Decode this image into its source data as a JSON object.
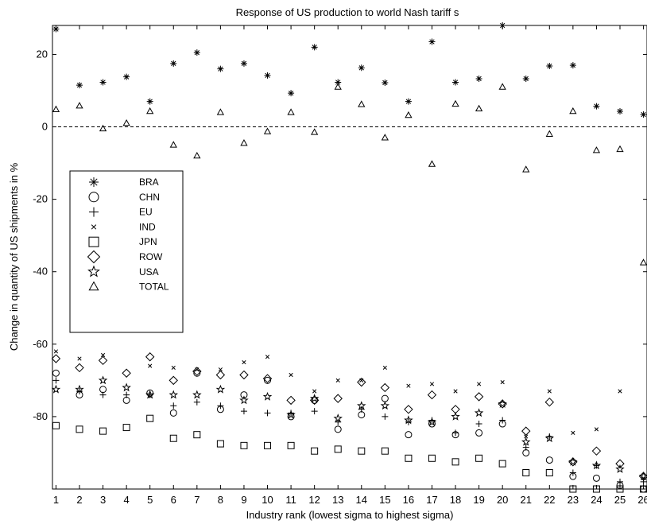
{
  "chart_data": {
    "type": "scatter",
    "title": "Response of US production to world Nash tariff s",
    "xlabel": "Industry rank (lowest sigma to highest sigma)",
    "ylabel": "Change in quantity of US shipments in %",
    "xlim": [
      0.85,
      26.15
    ],
    "ylim": [
      -100,
      28
    ],
    "xticks": [
      1,
      2,
      3,
      4,
      5,
      6,
      7,
      8,
      9,
      10,
      11,
      12,
      13,
      14,
      15,
      16,
      17,
      18,
      19,
      20,
      21,
      22,
      23,
      24,
      25,
      26
    ],
    "yticks": [
      20,
      0,
      -20,
      -40,
      -60,
      -80
    ],
    "reference_line": {
      "y": 0,
      "style": "dashed"
    },
    "legend_position": "left-middle",
    "grid": false,
    "series": [
      {
        "name": "BRA",
        "marker": "asterisk",
        "values": [
          27,
          11.5,
          12.3,
          13.8,
          7,
          17.5,
          20.5,
          16,
          17.5,
          14.2,
          9.3,
          22,
          12.3,
          16.3,
          12.2,
          7,
          23.5,
          12.3,
          13.3,
          28,
          13.3,
          16.8,
          17,
          5.7,
          4.3,
          3.4
        ]
      },
      {
        "name": "CHN",
        "marker": "circle",
        "values": [
          -68,
          -74,
          -72.5,
          -75.5,
          -73.5,
          -79,
          -68,
          -78,
          -74,
          -70,
          -80,
          -75.5,
          -83.5,
          -79.5,
          -75,
          -85,
          -82,
          -85,
          -84.5,
          -82,
          -90,
          -92,
          -96.5,
          -97,
          -99,
          -100
        ]
      },
      {
        "name": "EU",
        "marker": "plus",
        "values": [
          -70,
          -73,
          -74,
          -74,
          -74,
          -77,
          -76,
          -77,
          -78.5,
          -79,
          -79,
          -78.5,
          -81.5,
          -78,
          -80,
          -81.5,
          -81,
          -84.5,
          -82,
          -81,
          -88.5,
          -85.5,
          -95.5,
          -93.5,
          -98,
          -98
        ]
      },
      {
        "name": "IND",
        "marker": "cross",
        "values": [
          -62,
          -64,
          -63,
          -55,
          -66,
          -66.5,
          -67,
          -67,
          -65,
          -63.5,
          -68.5,
          -73,
          -70,
          -70,
          -66.5,
          -71.5,
          -71,
          -73,
          -71,
          -70.5,
          -85.5,
          -73,
          -84.5,
          -83.5,
          -73,
          -97
        ]
      },
      {
        "name": "JPN",
        "marker": "square",
        "values": [
          -82.5,
          -83.5,
          -84,
          -83,
          -80.5,
          -86,
          -85,
          -87.5,
          -88,
          -88,
          -88,
          -89.5,
          -89,
          -89.5,
          -89.5,
          -91.5,
          -91.5,
          -92.5,
          -91.5,
          -93,
          -95.5,
          -95.5,
          -100,
          -100,
          -100,
          -100
        ]
      },
      {
        "name": "ROW",
        "marker": "diamond",
        "values": [
          -64,
          -66.5,
          -64.5,
          -68,
          -63.5,
          -70,
          -67.5,
          -68.5,
          -68.5,
          -69.5,
          -75.5,
          -75.5,
          -75,
          -70.5,
          -72,
          -78,
          -74,
          -78,
          -74.5,
          -76.5,
          -84,
          -76,
          -92.5,
          -89.5,
          -93,
          -96.5
        ]
      },
      {
        "name": "USA",
        "marker": "star",
        "values": [
          -72.5,
          -72.5,
          -70,
          -72,
          -74,
          -74,
          -74,
          -72.5,
          -75.5,
          -74.5,
          -79.5,
          -75,
          -80.5,
          -77,
          -77,
          -81,
          -81.5,
          -80,
          -79,
          -76.5,
          -87,
          -86,
          -92.5,
          -93.5,
          -94.5,
          -96.5
        ]
      },
      {
        "name": "TOTAL",
        "marker": "triangle",
        "values": [
          4.8,
          5.8,
          -0.5,
          1,
          4.3,
          -5,
          -8,
          4,
          -4.5,
          -1.3,
          4,
          -1.5,
          11,
          6.2,
          -3,
          3.2,
          -10.3,
          6.3,
          5,
          11,
          -11.8,
          -2,
          4.3,
          -6.5,
          -6.2,
          -37.5
        ]
      }
    ]
  }
}
